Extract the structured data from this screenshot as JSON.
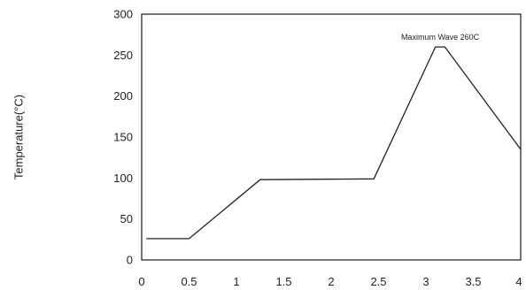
{
  "chart_data": {
    "type": "line",
    "title": "",
    "xlabel": "",
    "ylabel": "Temperature(°C)",
    "xlim": [
      0,
      4
    ],
    "ylim": [
      0,
      300
    ],
    "x_ticks": [
      "0",
      "0.5",
      "1",
      "1.5",
      "2",
      "2.5",
      "3",
      "3.5",
      "4"
    ],
    "y_ticks": [
      "0",
      "50",
      "100",
      "150",
      "200",
      "250",
      "300"
    ],
    "grid": false,
    "legend": "none",
    "series": [
      {
        "color": "#222222",
        "points": [
          [
            0.05,
            26
          ],
          [
            0.5,
            26
          ],
          [
            1.25,
            98
          ],
          [
            2.45,
            99
          ],
          [
            3.1,
            260
          ],
          [
            3.2,
            260
          ],
          [
            4.0,
            135
          ]
        ]
      }
    ],
    "annotations": [
      {
        "text": "Maximum Wave 260C",
        "x": 3.15,
        "y": 272
      }
    ]
  }
}
